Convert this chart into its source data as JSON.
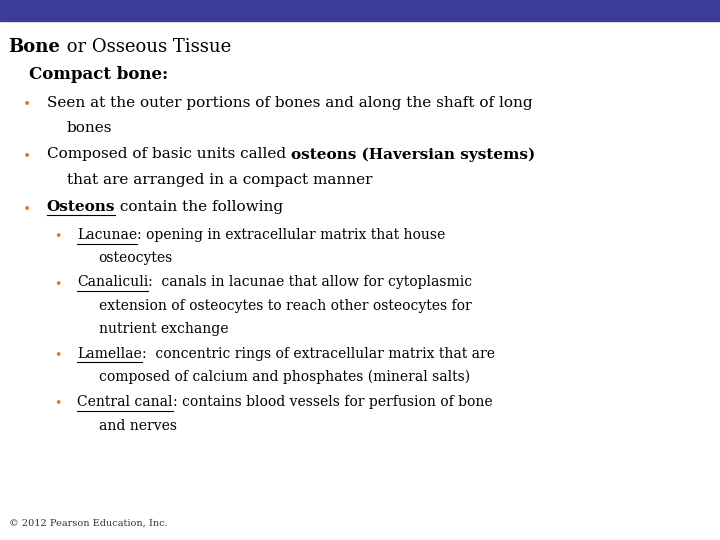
{
  "bg_color": "#ffffff",
  "top_bar_color": "#3d3d99",
  "orange": "#e87722",
  "black": "#000000",
  "footer": "© 2012 Pearson Education, Inc.",
  "title_fontsize": 13,
  "subtitle_fontsize": 12,
  "fs1": 11,
  "fs2": 10,
  "footer_fontsize": 7
}
